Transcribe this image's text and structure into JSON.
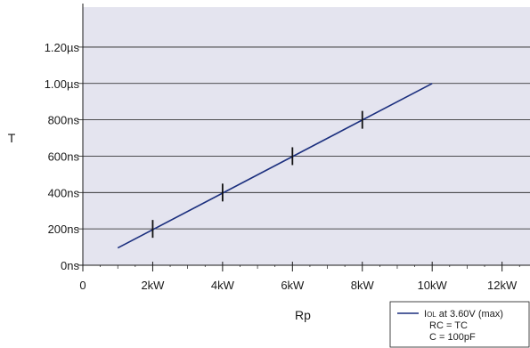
{
  "chart_data": {
    "type": "line",
    "xlabel": "Rp",
    "ylabel": "T",
    "x_tick_labels": [
      "0",
      "2kW",
      "4kW",
      "6kW",
      "8kW",
      "10kW",
      "12kW"
    ],
    "x_ticks": [
      0,
      2000,
      4000,
      6000,
      8000,
      10000,
      12000
    ],
    "y_tick_labels": [
      "0ns",
      "200ns",
      "400ns",
      "600ns",
      "800ns",
      "1.00µs",
      "1.20µs"
    ],
    "y_ticks": [
      0,
      200,
      400,
      600,
      800,
      1000,
      1200
    ],
    "xlim": [
      0,
      12800
    ],
    "ylim": [
      0,
      1420
    ],
    "grid": "horizontal",
    "series": [
      {
        "name": "IOL at 3.60V (max)",
        "color": "#1b2f7e",
        "x": [
          1000,
          10000
        ],
        "y": [
          95,
          1000
        ],
        "markers_x": [
          2000,
          4000,
          6000,
          8000
        ],
        "markers_y": [
          200,
          400,
          600,
          800
        ]
      }
    ],
    "legend": {
      "position": "bottom-right",
      "line1_main": "I",
      "line1_sub": "OL",
      "line1_rest": " at 3.60V (max)",
      "line2": "RC = TC",
      "line3": "C = 100pF"
    },
    "plot_background": "#e4e4ef"
  }
}
